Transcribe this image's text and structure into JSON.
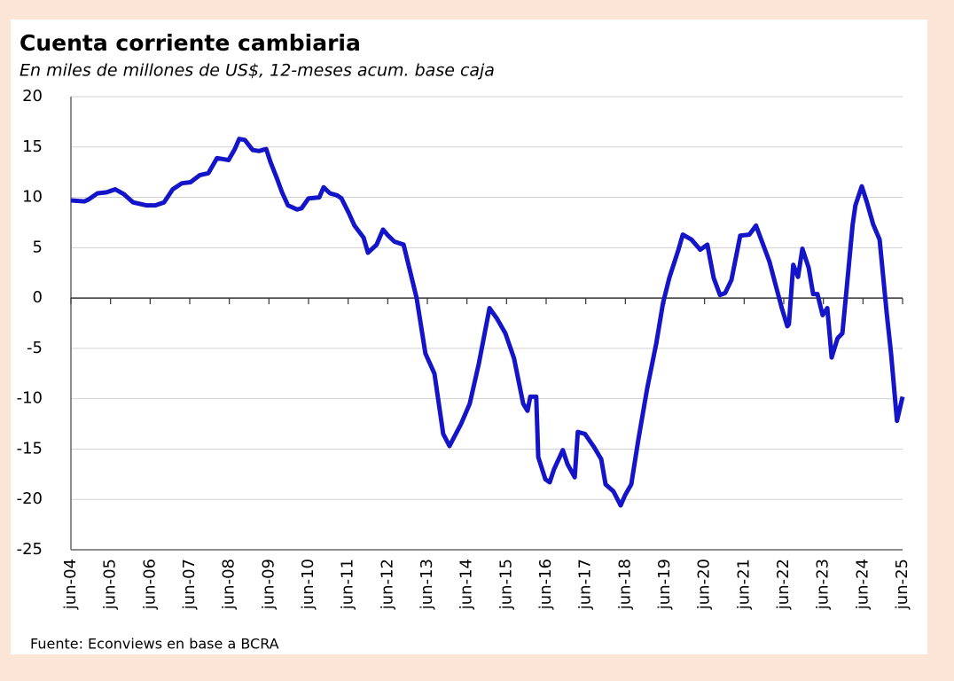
{
  "chart_data": {
    "type": "line",
    "title": "Cuenta corriente cambiaria",
    "subtitle": "En miles de millones de US$, 12-meses acum. base caja",
    "source": "Fuente: Econviews en base a BCRA",
    "x": [
      2004.5,
      2004.84,
      2004.95,
      2005.17,
      2005.4,
      2005.62,
      2005.84,
      2006.07,
      2006.4,
      2006.63,
      2006.85,
      2007.07,
      2007.3,
      2007.52,
      2007.75,
      2007.97,
      2008.19,
      2008.48,
      2008.64,
      2008.75,
      2008.89,
      2009.09,
      2009.25,
      2009.43,
      2009.54,
      2009.69,
      2009.83,
      2009.98,
      2010.21,
      2010.32,
      2010.5,
      2010.77,
      2010.88,
      2011.04,
      2011.22,
      2011.33,
      2011.51,
      2011.66,
      2011.89,
      2012.0,
      2012.22,
      2012.38,
      2012.51,
      2012.67,
      2012.9,
      2013.23,
      2013.45,
      2013.68,
      2013.9,
      2014.06,
      2014.35,
      2014.57,
      2014.8,
      2015.07,
      2015.25,
      2015.47,
      2015.69,
      2015.92,
      2016.03,
      2016.1,
      2016.25,
      2016.3,
      2016.48,
      2016.59,
      2016.7,
      2016.92,
      2017.04,
      2017.22,
      2017.3,
      2017.48,
      2017.71,
      2017.89,
      2018.0,
      2018.2,
      2018.38,
      2018.49,
      2018.65,
      2018.83,
      2019.05,
      2019.28,
      2019.45,
      2019.61,
      2019.84,
      2019.95,
      2020.17,
      2020.39,
      2020.57,
      2020.73,
      2020.89,
      2021.02,
      2021.18,
      2021.4,
      2021.63,
      2021.8,
      2021.96,
      2022.14,
      2022.3,
      2022.45,
      2022.59,
      2022.63,
      2022.74,
      2022.86,
      2022.97,
      2023.13,
      2023.24,
      2023.35,
      2023.48,
      2023.6,
      2023.71,
      2023.86,
      2023.98,
      2024.09,
      2024.24,
      2024.31,
      2024.47,
      2024.6,
      2024.76,
      2024.92,
      2025.1,
      2025.21,
      2025.36,
      2025.5
    ],
    "series": [
      {
        "name": "Cuenta corriente cambiaria",
        "color": "#1414c8",
        "values": [
          9.7,
          9.6,
          9.8,
          10.4,
          10.5,
          10.8,
          10.3,
          9.5,
          9.2,
          9.2,
          9.5,
          10.8,
          11.4,
          11.5,
          12.2,
          12.4,
          13.9,
          13.7,
          14.8,
          15.8,
          15.7,
          14.7,
          14.6,
          14.8,
          13.5,
          12.0,
          10.5,
          9.2,
          8.8,
          8.9,
          9.9,
          10.0,
          11,
          10.4,
          10.2,
          9.9,
          8.5,
          7.2,
          6,
          4.5,
          5.3,
          6.8,
          6.2,
          5.6,
          5.3,
          0,
          -5.5,
          -7.5,
          -13.5,
          -14.7,
          -12.5,
          -10.5,
          -6.5,
          -1,
          -2,
          -3.5,
          -6,
          -10.5,
          -11.2,
          -9.8,
          -9.8,
          -15.8,
          -18,
          -18.3,
          -17,
          -15.1,
          -16.5,
          -17.8,
          -13.3,
          -13.5,
          -14.8,
          -16,
          -18.5,
          -19.2,
          -20.6,
          -19.6,
          -18.5,
          -14,
          -9,
          -4.5,
          -0.5,
          2,
          4.8,
          6.3,
          5.8,
          4.8,
          5.3,
          2,
          0.3,
          0.5,
          1.8,
          6.2,
          6.3,
          7.2,
          5.5,
          3.6,
          1.2,
          -1,
          -2.8,
          -2.6,
          3.3,
          2.1,
          4.9,
          3,
          0.4,
          0.4,
          -1.7,
          -1,
          -5.9,
          -4,
          -3.5,
          1,
          7.3,
          9.2,
          11.1,
          9.5,
          7.3,
          5.8,
          -1.5,
          -5.5,
          -12.2,
          -9.8
        ]
      }
    ],
    "xlim": [
      2004.5,
      2025.5
    ],
    "xticks": [
      {
        "value": 2004.5,
        "label": "jun-04"
      },
      {
        "value": 2005.5,
        "label": "jun-05"
      },
      {
        "value": 2006.5,
        "label": "jun-06"
      },
      {
        "value": 2007.5,
        "label": "jun-07"
      },
      {
        "value": 2008.5,
        "label": "jun-08"
      },
      {
        "value": 2009.5,
        "label": "jun-09"
      },
      {
        "value": 2010.5,
        "label": "jun-10"
      },
      {
        "value": 2011.5,
        "label": "jun-11"
      },
      {
        "value": 2012.5,
        "label": "jun-12"
      },
      {
        "value": 2013.5,
        "label": "jun-13"
      },
      {
        "value": 2014.5,
        "label": "jun-14"
      },
      {
        "value": 2015.5,
        "label": "jun-15"
      },
      {
        "value": 2016.5,
        "label": "jun-16"
      },
      {
        "value": 2017.5,
        "label": "jun-17"
      },
      {
        "value": 2018.5,
        "label": "jun-18"
      },
      {
        "value": 2019.5,
        "label": "jun-19"
      },
      {
        "value": 2020.5,
        "label": "jun-20"
      },
      {
        "value": 2021.5,
        "label": "jun-21"
      },
      {
        "value": 2022.5,
        "label": "jun-22"
      },
      {
        "value": 2023.5,
        "label": "jun-23"
      },
      {
        "value": 2024.5,
        "label": "jun-24"
      },
      {
        "value": 2025.5,
        "label": "jun-25"
      }
    ],
    "ylim": [
      -25,
      20
    ],
    "yticks": [
      -25,
      -20,
      -15,
      -10,
      -5,
      0,
      5,
      10,
      15,
      20
    ],
    "grid": true
  }
}
